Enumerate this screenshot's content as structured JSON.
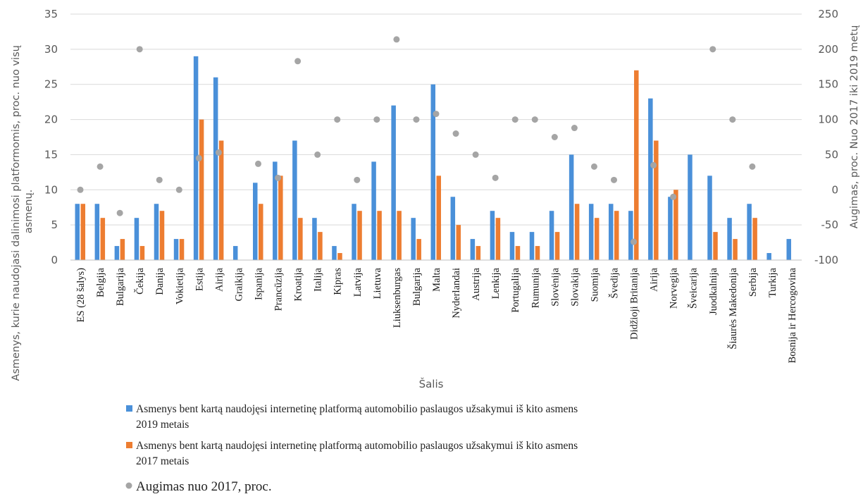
{
  "chart_data": {
    "type": "bar",
    "xlabel": "Šalis",
    "ylabel_lines": [
      "Asmenys, kurie naudojasi dalinimosi platformomis, proc. nuo visų",
      "asmenų."
    ],
    "ylabel2": "Augimas, proc. Nuo 2017 iki 2019 metų",
    "ylim": [
      0,
      35
    ],
    "y_ticks": [
      "0",
      "5",
      "10",
      "15",
      "20",
      "25",
      "30",
      "35"
    ],
    "y2lim": [
      -100,
      250
    ],
    "y2_ticks": [
      "-100",
      "-50",
      "0",
      "50",
      "100",
      "150",
      "200",
      "250"
    ],
    "categories": [
      "ES (28 šalys)",
      "Belgija",
      "Bulgarija",
      "Čekija",
      "Danija",
      "Vokietija",
      "Estija",
      "Airija",
      "Graikija",
      "Ispanija",
      "Prancūzija",
      "Kroatija",
      "Italija",
      "Kipras",
      "Latvija",
      "Lietuva",
      "Liuksenburgas",
      "Bulgarija",
      "Malta",
      "Nyderlandai",
      "Austrija",
      "Lenkija",
      "Portugalija",
      "Rumunija",
      "Slovėnija",
      "Slovakija",
      "Suomija",
      "Švedija",
      "Didžioji Britanija",
      "Airija",
      "Norvegija",
      "Šveicarija",
      "Juodkalnija",
      "Šiaurės Makedonija",
      "Serbija",
      "Turkija",
      "Bosnija ir Hercogovina"
    ],
    "series": [
      {
        "name_lines": [
          "Asmenys bent kartą naudojęsi internetinę platformą automobilio paslaugos užsakymui iš kito asmens",
          "2019 metais"
        ],
        "color": "#4a90d9",
        "axis": "left",
        "kind": "bar",
        "values": [
          8,
          8,
          2,
          6,
          8,
          3,
          29,
          26,
          2,
          11,
          14,
          17,
          6,
          2,
          8,
          14,
          22,
          6,
          25,
          9,
          3,
          7,
          4,
          4,
          7,
          15,
          8,
          8,
          7,
          23,
          9,
          15,
          12,
          6,
          8,
          1,
          3
        ]
      },
      {
        "name_lines": [
          "Asmenys bent kartą naudojęsi internetinę platformą automobilio paslaugos užsakymui iš kito asmens",
          "2017 metais"
        ],
        "color": "#ed7d31",
        "axis": "left",
        "kind": "bar",
        "values": [
          8,
          6,
          3,
          2,
          7,
          3,
          20,
          17,
          null,
          8,
          12,
          6,
          4,
          1,
          7,
          7,
          7,
          3,
          12,
          5,
          2,
          6,
          2,
          2,
          4,
          8,
          6,
          7,
          27,
          17,
          10,
          null,
          4,
          3,
          6,
          null,
          null
        ]
      },
      {
        "name": "Augimas nuo 2017, proc.",
        "color": "#a5a5a5",
        "axis": "right",
        "kind": "scatter",
        "values": [
          0,
          33,
          -33,
          200,
          14,
          0,
          45,
          53,
          null,
          37,
          17,
          183,
          50,
          100,
          14,
          100,
          214,
          100,
          108,
          80,
          50,
          17,
          100,
          100,
          75,
          88,
          33,
          14,
          -74,
          35,
          -10,
          null,
          200,
          100,
          33,
          null,
          null
        ]
      }
    ],
    "grid": true,
    "legend_position": "bottom"
  }
}
